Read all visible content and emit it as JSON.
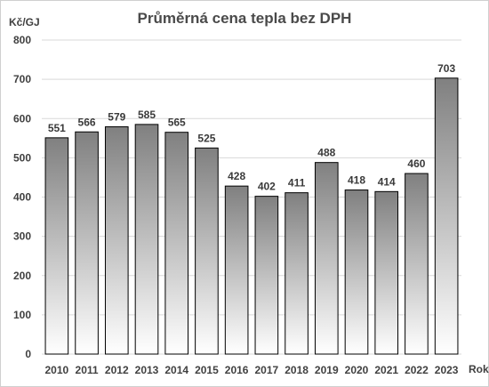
{
  "chart_data": {
    "type": "bar",
    "title": "Průměrná cena tepla bez DPH",
    "ylabel": "Kč/GJ",
    "xlabel": "Rok",
    "categories": [
      "2010",
      "2011",
      "2012",
      "2013",
      "2014",
      "2015",
      "2016",
      "2017",
      "2018",
      "2019",
      "2020",
      "2021",
      "2022",
      "2023"
    ],
    "values": [
      551,
      566,
      579,
      585,
      565,
      525,
      428,
      402,
      411,
      488,
      418,
      414,
      460,
      703
    ],
    "ylim": [
      0,
      800
    ],
    "yticks": [
      0,
      100,
      200,
      300,
      400,
      500,
      600,
      700,
      800
    ],
    "grid": true,
    "legend": "none",
    "colors": {
      "bar_top": "#808080",
      "bar_bottom": "#ffffff",
      "bar_stroke": "#000000",
      "grid": "#d9d9d9"
    }
  }
}
